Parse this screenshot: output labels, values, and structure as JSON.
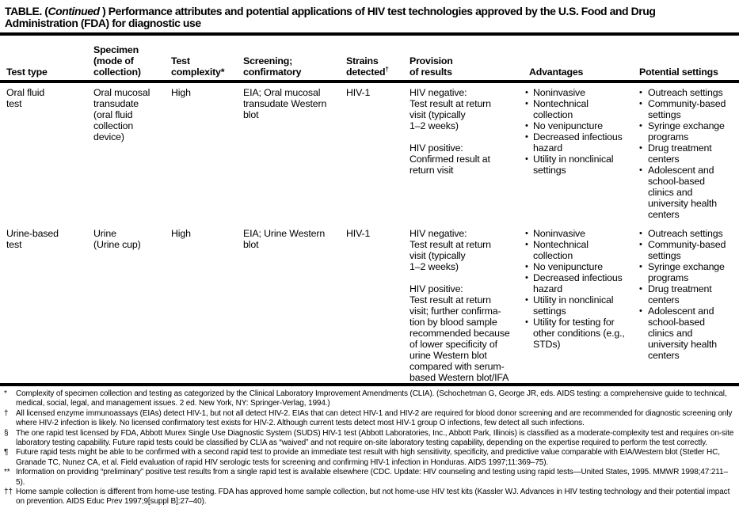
{
  "title": {
    "line1_pre": "TABLE. (",
    "continued": "Continued",
    "line1_post": " ) Performance attributes and potential applications of HIV test technologies approved by the U.S. Food and Drug",
    "line2": "Administration (FDA) for diagnostic use"
  },
  "table": {
    "headers": {
      "test_type": "Test type",
      "specimen": "Specimen\n(mode of\ncollection)",
      "complexity": "Test\ncomplexity*",
      "strains": "Strains\ndetected",
      "strains_sup": "†",
      "screening": "Screening;\nconfirmatory",
      "provision": "Provision\nof results",
      "advantages": "Advantages",
      "settings": "Potential settings"
    },
    "rows": [
      {
        "test_type": "Oral fluid\ntest",
        "specimen": "Oral mucosal\ntransudate\n(oral fluid\ncollection\ndevice)",
        "complexity": "High",
        "screening": "EIA; Oral mucosal\ntransudate Western\nblot",
        "strains": "HIV-1",
        "provision": "HIV negative:\nTest result at return\nvisit (typically\n1–2 weeks)\n\nHIV positive:\nConfirmed result at\nreturn visit",
        "advantages": [
          "Noninvasive",
          "Nontechnical\ncollection",
          "No venipuncture",
          "Decreased infectious\nhazard",
          "Utility in nonclinical\nsettings"
        ],
        "settings": [
          "Outreach settings",
          "Community-based\nsettings",
          "Syringe exchange\nprograms",
          "Drug treatment\ncenters",
          "Adolescent and\nschool-based\nclinics and\nuniversity health\ncenters"
        ]
      },
      {
        "test_type": "Urine-based\ntest",
        "specimen": "Urine\n(Urine cup)",
        "complexity": "High",
        "screening": "EIA; Urine Western\nblot",
        "strains": "HIV-1",
        "provision": "HIV negative:\nTest result at return\nvisit (typically\n1–2 weeks)\n\nHIV positive:\nTest result at return\nvisit; further confirma-\ntion by blood sample\nrecommended because\nof lower specificity of\nurine Western blot\ncompared with serum-\nbased Western blot/IFA",
        "advantages": [
          "Noninvasive",
          "Nontechnical\ncollection",
          "No venipuncture",
          "Decreased infectious\nhazard",
          "Utility in nonclinical\nsettings",
          "Utility for testing for\nother conditions (e.g.,\nSTDs)"
        ],
        "settings": [
          "Outreach settings",
          "Community-based\nsettings",
          "Syringe exchange\nprograms",
          "Drug treatment\ncenters",
          "Adolescent and\nschool-based\nclinics and\nuniversity health\ncenters"
        ]
      }
    ]
  },
  "footnotes": [
    {
      "marker": "*",
      "text": "Complexity of specimen collection and testing as categorized by the Clinical Laboratory Improvement Amendments (CLIA). (Schochetman G, George JR, eds. AIDS testing: a comprehensive guide to technical, medical, social, legal, and management issues. 2 ed. New York, NY: Springer-Verlag, 1994.)"
    },
    {
      "marker": "†",
      "text": "All licensed enzyme immunoassays (EIAs) detect HIV-1, but not all detect HIV-2. EIAs that can detect HIV-1 and HIV-2 are required for blood donor screening and are recommended for diagnostic screening only where HIV-2 infection is likely. No licensed confirmatory test exists for HIV-2. Although current tests detect most HIV-1 group O infections, few detect all such infections."
    },
    {
      "marker": "§",
      "text": "The one rapid test licensed by FDA, Abbott Murex Single Use Diagnostic System (SUDS) HIV-1 test (Abbott Laboratories, Inc., Abbott Park, Illinois) is classified as a moderate-complexity test and requires on-site laboratory testing capability. Future rapid tests could be classified by CLIA as “waived” and not require on-site laboratory testing capability, depending on the expertise required to perform the test correctly."
    },
    {
      "marker": "¶",
      "text": "Future rapid tests might be able to be confirmed with a second rapid test to provide an immediate test result with high sensitivity, specificity, and predictive value comparable with EIA/Western blot (Stetler HC, Granade TC, Nunez CA, et al. Field evaluation of rapid HIV serologic tests for screening and confirming HIV-1 infection in Honduras. AIDS 1997;11:369–75)."
    },
    {
      "marker": "**",
      "text": "Information on providing “preliminary” positive test results from a single rapid test is available elsewhere (CDC. Update: HIV counseling and testing using rapid tests—United States, 1995. MMWR 1998;47:211–5)."
    },
    {
      "marker": "††",
      "text": "Home sample collection is different from home-use testing. FDA has approved home sample collection, but not home-use HIV test kits (Kassler WJ. Advances in HIV testing technology and their potential impact on prevention. AIDS Educ Prev 1997;9[suppl B]:27–40)."
    }
  ],
  "bullet_glyph": "•"
}
